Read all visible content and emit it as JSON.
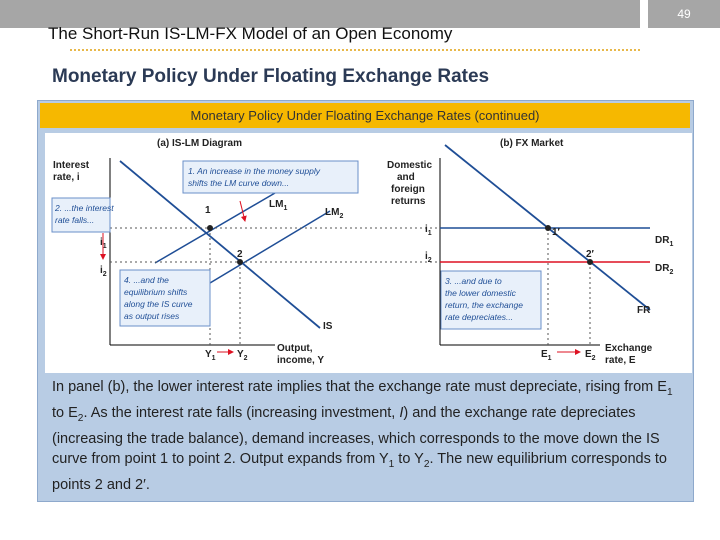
{
  "slide": {
    "title": "The Short-Run IS-LM-FX Model of an Open Economy",
    "page_number": "49",
    "subtitle": "Monetary Policy Under Floating Exchange Rates",
    "banner": "Monetary Policy Under Floating Exchange Rates (continued)"
  },
  "diagram": {
    "panel_a": {
      "title": "(a) IS-LM Diagram",
      "y_axis_label": [
        "Interest",
        "rate, i"
      ],
      "x_axis_label": [
        "Output,",
        "income, Y"
      ],
      "i1": {
        "base": "i",
        "sub": "1"
      },
      "i2": {
        "base": "i",
        "sub": "2"
      },
      "lm1": {
        "base": "LM",
        "sub": "1"
      },
      "lm2": {
        "base": "LM",
        "sub": "2"
      },
      "is": "IS",
      "y1": {
        "base": "Y",
        "sub": "1"
      },
      "y2": {
        "base": "Y",
        "sub": "2"
      },
      "point1": "1",
      "point2": "2",
      "note1": [
        "1. An increase in the money supply",
        "shifts the LM curve down..."
      ],
      "note2": [
        "2. ...the interest",
        "rate falls..."
      ],
      "note4": [
        "4. ...and the",
        "equilibrium shifts",
        "along the IS curve",
        "as output rises"
      ]
    },
    "panel_b": {
      "title": "(b) FX Market",
      "y_axis_label": [
        "Domestic",
        "and",
        "foreign",
        "returns"
      ],
      "x_axis_label": [
        "Exchange",
        "rate, E"
      ],
      "i1": {
        "base": "i",
        "sub": "1"
      },
      "i2": {
        "base": "i",
        "sub": "2"
      },
      "dr1": {
        "base": "DR",
        "sub": "1"
      },
      "dr2": {
        "base": "DR",
        "sub": "2"
      },
      "fr": "FR",
      "e1": {
        "base": "E",
        "sub": "1"
      },
      "e2": {
        "base": "E",
        "sub": "2"
      },
      "point1": "1′",
      "point2": "2′",
      "note3": [
        "3. ...and due to",
        "the lower domestic",
        "return, the exchange",
        "rate depreciates..."
      ]
    }
  },
  "body": [
    "In panel (b), the lower interest rate implies that the exchange rate must depreciate, rising from E",
    "1",
    " to E",
    "2",
    ". As the interest rate falls (increasing investment, ",
    "I",
    ") and the exchange rate depreciates (increasing the trade balance), demand increases, which corresponds to the move down the IS curve from point 1 to point 2. Output expands from Y",
    "1",
    " to Y",
    "2",
    ". The new equilibrium corresponds to points 2 and 2′."
  ]
}
